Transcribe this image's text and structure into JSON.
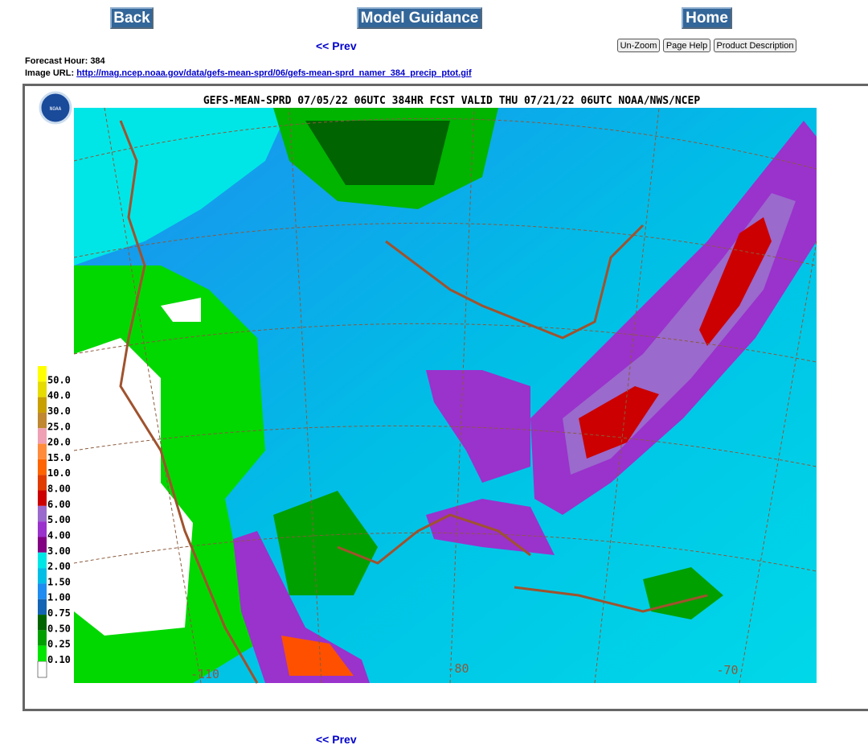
{
  "nav": {
    "back": "Back",
    "model_guidance": "Model Guidance",
    "home": "Home"
  },
  "prev_top": "<< Prev",
  "buttons": [
    "Un-Zoom",
    "Page Help",
    "Product Description"
  ],
  "info": {
    "forecast_hour_label": "Forecast Hour:",
    "forecast_hour": "384",
    "image_url_label": "Image URL:",
    "image_url": "http://mag.ncep.noaa.gov/data/gefs-mean-sprd/06/gefs-mean-sprd_namer_384_precip_ptot.gif"
  },
  "map": {
    "title": "GEFS-MEAN-SPRD 07/05/22 06UTC 384HR FCST VALID THU 07/21/22 06UTC NOAA/NWS/NCEP",
    "logo": "NOAA",
    "lon_labels": [
      "-110",
      "-80",
      "-70"
    ],
    "legend": [
      {
        "label": "50.0",
        "color": "#ffff00"
      },
      {
        "label": "40.0",
        "color": "#e6dc00"
      },
      {
        "label": "30.0",
        "color": "#c8a000"
      },
      {
        "label": "25.0",
        "color": "#c08830"
      },
      {
        "label": "20.0",
        "color": "#f0a0b4"
      },
      {
        "label": "15.0",
        "color": "#ff8c3c"
      },
      {
        "label": "10.0",
        "color": "#ff6400"
      },
      {
        "label": "8.00",
        "color": "#e03c00"
      },
      {
        "label": "6.00",
        "color": "#cc0000"
      },
      {
        "label": "5.00",
        "color": "#9a6acc"
      },
      {
        "label": "4.00",
        "color": "#9a32cc"
      },
      {
        "label": "3.00",
        "color": "#820082"
      },
      {
        "label": "2.00",
        "color": "#00e6e6"
      },
      {
        "label": "1.50",
        "color": "#00bee6"
      },
      {
        "label": "1.00",
        "color": "#1e8cf0"
      },
      {
        "label": "0.75",
        "color": "#1464b4"
      },
      {
        "label": "0.50",
        "color": "#006400"
      },
      {
        "label": "0.25",
        "color": "#00a000"
      },
      {
        "label": "0.10",
        "color": "#00e600"
      }
    ]
  }
}
